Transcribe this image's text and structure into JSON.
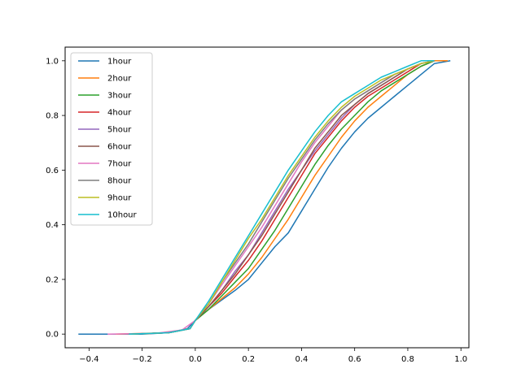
{
  "chart_data": {
    "type": "line",
    "title": "",
    "xlabel": "",
    "ylabel": "",
    "xlim": [
      -0.49,
      1.03
    ],
    "ylim": [
      -0.05,
      1.05
    ],
    "xticks": [
      -0.4,
      -0.2,
      0.0,
      0.2,
      0.4,
      0.6,
      0.8,
      1.0
    ],
    "xtick_labels": [
      "−0.4",
      "−0.2",
      "0.0",
      "0.2",
      "0.4",
      "0.6",
      "0.8",
      "1.0"
    ],
    "yticks": [
      0.0,
      0.2,
      0.4,
      0.6,
      0.8,
      1.0
    ],
    "ytick_labels": [
      "0.0",
      "0.2",
      "0.4",
      "0.6",
      "0.8",
      "1.0"
    ],
    "grid": false,
    "legend_position": "upper-left",
    "series": [
      {
        "name": "1hour",
        "color": "#1f77b4",
        "x": [
          -0.44,
          -0.2,
          -0.1,
          -0.03,
          0.0,
          0.05,
          0.1,
          0.15,
          0.2,
          0.25,
          0.3,
          0.35,
          0.4,
          0.45,
          0.5,
          0.55,
          0.6,
          0.65,
          0.7,
          0.75,
          0.8,
          0.85,
          0.9,
          0.96
        ],
        "y": [
          0.0,
          0.0,
          0.005,
          0.02,
          0.05,
          0.09,
          0.125,
          0.16,
          0.2,
          0.26,
          0.32,
          0.37,
          0.45,
          0.53,
          0.61,
          0.68,
          0.74,
          0.79,
          0.83,
          0.87,
          0.91,
          0.95,
          0.99,
          1.0
        ]
      },
      {
        "name": "2hour",
        "color": "#ff7f0e",
        "x": [
          -0.3,
          -0.1,
          -0.02,
          0.0,
          0.05,
          0.1,
          0.15,
          0.2,
          0.25,
          0.3,
          0.35,
          0.4,
          0.45,
          0.5,
          0.55,
          0.6,
          0.65,
          0.7,
          0.75,
          0.8,
          0.85,
          0.9,
          0.95
        ],
        "y": [
          0.0,
          0.005,
          0.02,
          0.05,
          0.09,
          0.13,
          0.17,
          0.22,
          0.28,
          0.35,
          0.42,
          0.5,
          0.58,
          0.65,
          0.72,
          0.78,
          0.83,
          0.87,
          0.91,
          0.95,
          0.98,
          1.0,
          1.0
        ]
      },
      {
        "name": "3hour",
        "color": "#2ca02c",
        "x": [
          -0.25,
          -0.1,
          -0.02,
          0.0,
          0.05,
          0.1,
          0.15,
          0.2,
          0.25,
          0.3,
          0.35,
          0.4,
          0.45,
          0.5,
          0.55,
          0.6,
          0.65,
          0.7,
          0.75,
          0.8,
          0.85,
          0.9
        ],
        "y": [
          0.0,
          0.005,
          0.02,
          0.05,
          0.09,
          0.14,
          0.19,
          0.24,
          0.31,
          0.38,
          0.46,
          0.54,
          0.62,
          0.69,
          0.75,
          0.8,
          0.85,
          0.89,
          0.92,
          0.95,
          0.98,
          1.0
        ]
      },
      {
        "name": "4hour",
        "color": "#d62728",
        "x": [
          -0.25,
          -0.1,
          -0.02,
          0.0,
          0.05,
          0.1,
          0.15,
          0.2,
          0.25,
          0.3,
          0.35,
          0.4,
          0.45,
          0.5,
          0.55,
          0.6,
          0.65,
          0.7,
          0.75,
          0.8,
          0.85,
          0.9
        ],
        "y": [
          0.0,
          0.005,
          0.02,
          0.05,
          0.1,
          0.15,
          0.21,
          0.27,
          0.34,
          0.42,
          0.5,
          0.58,
          0.66,
          0.72,
          0.78,
          0.83,
          0.87,
          0.9,
          0.93,
          0.96,
          0.99,
          1.0
        ]
      },
      {
        "name": "5hour",
        "color": "#9467bd",
        "x": [
          -0.25,
          -0.1,
          -0.02,
          0.0,
          0.05,
          0.1,
          0.15,
          0.2,
          0.25,
          0.3,
          0.35,
          0.4,
          0.45,
          0.5,
          0.55,
          0.6,
          0.65,
          0.7,
          0.75,
          0.8,
          0.85,
          0.9
        ],
        "y": [
          0.0,
          0.005,
          0.02,
          0.05,
          0.1,
          0.16,
          0.23,
          0.29,
          0.37,
          0.45,
          0.53,
          0.6,
          0.67,
          0.73,
          0.79,
          0.84,
          0.88,
          0.91,
          0.94,
          0.97,
          0.99,
          1.0
        ]
      },
      {
        "name": "6hour",
        "color": "#8c564b",
        "x": [
          -0.25,
          -0.1,
          -0.02,
          0.0,
          0.05,
          0.1,
          0.15,
          0.2,
          0.25,
          0.3,
          0.35,
          0.4,
          0.45,
          0.5,
          0.55,
          0.6,
          0.65,
          0.7,
          0.75,
          0.8,
          0.85,
          0.9
        ],
        "y": [
          0.0,
          0.005,
          0.02,
          0.05,
          0.1,
          0.16,
          0.22,
          0.29,
          0.36,
          0.44,
          0.52,
          0.6,
          0.68,
          0.74,
          0.8,
          0.84,
          0.88,
          0.91,
          0.94,
          0.97,
          0.99,
          1.0
        ]
      },
      {
        "name": "7hour",
        "color": "#e377c2",
        "x": [
          -0.33,
          -0.15,
          -0.05,
          0.0,
          0.05,
          0.1,
          0.15,
          0.2,
          0.25,
          0.3,
          0.35,
          0.4,
          0.45,
          0.5,
          0.55,
          0.6,
          0.65,
          0.7,
          0.75,
          0.8,
          0.85,
          0.9
        ],
        "y": [
          0.0,
          0.003,
          0.015,
          0.05,
          0.11,
          0.18,
          0.25,
          0.32,
          0.39,
          0.47,
          0.55,
          0.63,
          0.7,
          0.76,
          0.82,
          0.86,
          0.89,
          0.92,
          0.95,
          0.97,
          0.99,
          1.0
        ]
      },
      {
        "name": "8hour",
        "color": "#7f7f7f",
        "x": [
          -0.25,
          -0.1,
          -0.02,
          0.0,
          0.05,
          0.1,
          0.15,
          0.2,
          0.25,
          0.3,
          0.35,
          0.4,
          0.45,
          0.5,
          0.55,
          0.6,
          0.65,
          0.7,
          0.75,
          0.8,
          0.85,
          0.9
        ],
        "y": [
          0.0,
          0.005,
          0.02,
          0.05,
          0.11,
          0.19,
          0.26,
          0.33,
          0.41,
          0.49,
          0.57,
          0.64,
          0.71,
          0.77,
          0.82,
          0.86,
          0.89,
          0.92,
          0.95,
          0.97,
          0.99,
          1.0
        ]
      },
      {
        "name": "9hour",
        "color": "#bcbd22",
        "x": [
          -0.25,
          -0.1,
          -0.02,
          0.0,
          0.05,
          0.1,
          0.15,
          0.2,
          0.25,
          0.3,
          0.35,
          0.4,
          0.45,
          0.5,
          0.55,
          0.6,
          0.65,
          0.7,
          0.75,
          0.8,
          0.85,
          0.9
        ],
        "y": [
          0.0,
          0.005,
          0.02,
          0.05,
          0.11,
          0.19,
          0.27,
          0.35,
          0.42,
          0.5,
          0.58,
          0.65,
          0.72,
          0.78,
          0.83,
          0.87,
          0.9,
          0.93,
          0.95,
          0.97,
          0.99,
          1.0
        ]
      },
      {
        "name": "10hour",
        "color": "#17becf",
        "x": [
          -0.25,
          -0.1,
          -0.02,
          0.0,
          0.05,
          0.1,
          0.15,
          0.2,
          0.25,
          0.3,
          0.35,
          0.4,
          0.45,
          0.5,
          0.55,
          0.6,
          0.65,
          0.7,
          0.75,
          0.8,
          0.85,
          0.9
        ],
        "y": [
          0.0,
          0.005,
          0.02,
          0.05,
          0.12,
          0.2,
          0.28,
          0.36,
          0.44,
          0.52,
          0.6,
          0.67,
          0.74,
          0.8,
          0.85,
          0.88,
          0.91,
          0.94,
          0.96,
          0.98,
          1.0,
          1.0
        ]
      }
    ]
  }
}
